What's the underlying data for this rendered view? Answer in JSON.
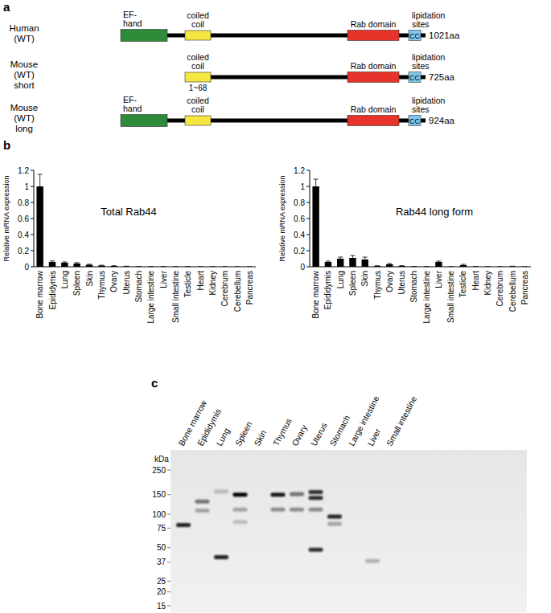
{
  "panel_a": {
    "label": "a",
    "rows": [
      {
        "name": [
          "Human",
          "(WT)"
        ],
        "length": "1021aa",
        "domains": [
          {
            "label": [
              "EF-",
              "hand"
            ],
            "color": "#2e8b3a"
          },
          {
            "label": [
              "coiled",
              "coil"
            ],
            "color": "#f5e642"
          },
          {
            "label": [
              "Rab domain"
            ],
            "color": "#e8332a"
          },
          {
            "label": [
              "lipidation",
              "sites"
            ],
            "color": "#7ec8ee",
            "text": "CC"
          }
        ]
      },
      {
        "name": [
          "Mouse",
          "(WT)",
          "short"
        ],
        "length": "725aa",
        "domains": [
          {
            "label": [
              "coiled",
              "coil"
            ],
            "color": "#f5e642",
            "note": "1~68"
          },
          {
            "label": [
              "Rab domain"
            ],
            "color": "#e8332a"
          },
          {
            "label": [
              "lipidation",
              "sites"
            ],
            "color": "#7ec8ee",
            "text": "CC"
          }
        ]
      },
      {
        "name": [
          "Mouse",
          "(WT)",
          "long"
        ],
        "length": "924aa",
        "domains": [
          {
            "label": [
              "EF-",
              "hand"
            ],
            "color": "#2e8b3a"
          },
          {
            "label": [
              "coiled",
              "coil"
            ],
            "color": "#f5e642"
          },
          {
            "label": [
              "Rab domain"
            ],
            "color": "#e8332a"
          },
          {
            "label": [
              "lipidation",
              "sites"
            ],
            "color": "#7ec8ee",
            "text": "CC"
          }
        ]
      }
    ]
  },
  "panel_b_label": "b",
  "chart_data": [
    {
      "type": "bar",
      "title": "Total Rab44",
      "y_label": "Relative mRNA expression",
      "categories": [
        "Bone marrow",
        "Epididymis",
        "Lung",
        "Spleen",
        "Skin",
        "Thymus",
        "Ovary",
        "Uterus",
        "Stomach",
        "Large intestine",
        "Liver",
        "Small intestine",
        "Testicle",
        "Heart",
        "Kidney",
        "Cerebrum",
        "Cerebellum",
        "Pancreas"
      ],
      "values": [
        1,
        0.06,
        0.05,
        0.04,
        0.025,
        0.015,
        0.01,
        0.005,
        0.003,
        0.002,
        0.002,
        0.001,
        0.002,
        0.001,
        0.001,
        0.001,
        0.0005,
        0.0005
      ],
      "errors": [
        0.15,
        0.012,
        0.01,
        0.012,
        0.006,
        0.004,
        0.003,
        0.002,
        0.001,
        0.001,
        0.001,
        0.0005,
        0.001,
        0.0005,
        0.0005,
        0.0005,
        0.0003,
        0.0003
      ],
      "color": "#000000",
      "ylim": [
        0,
        1.2
      ],
      "yticks": [
        0,
        0.2,
        0.4,
        0.6,
        0.8,
        1,
        1.2
      ],
      "grid": false
    },
    {
      "type": "bar",
      "title": "Rab44 long form",
      "y_label": "Relative mRNA expression",
      "categories": [
        "Bone marrow",
        "Epididymis",
        "Lung",
        "Spleen",
        "Skin",
        "Thymus",
        "Ovary",
        "Uterus",
        "Stomach",
        "Large intestine",
        "Liver",
        "Small intestine",
        "Testicle",
        "Heart",
        "Kidney",
        "Cerebrum",
        "Cerebellum",
        "Pancreas"
      ],
      "values": [
        1,
        0.06,
        0.1,
        0.11,
        0.09,
        0.01,
        0.03,
        0.01,
        0.003,
        0.002,
        0.06,
        0.001,
        0.02,
        0.002,
        0.001,
        0.001,
        0.005,
        0.001
      ],
      "errors": [
        0.09,
        0.01,
        0.02,
        0.03,
        0.03,
        0.003,
        0.01,
        0.004,
        0.001,
        0.001,
        0.01,
        0.0005,
        0.01,
        0.001,
        0.0005,
        0.0005,
        0.002,
        0.0005
      ],
      "color": "#000000",
      "ylim": [
        0,
        1.2
      ],
      "yticks": [
        0,
        0.2,
        0.4,
        0.6,
        0.8,
        1,
        1.2
      ],
      "grid": false
    }
  ],
  "panel_c": {
    "label": "c",
    "unit": "kDa",
    "markers": [
      250,
      150,
      100,
      75,
      50,
      37,
      25,
      20,
      15
    ],
    "lanes": [
      "Bone marrow",
      "Epididymis",
      "Lung",
      "Spleen",
      "Skin",
      "Thymus",
      "Ovary",
      "Uterus",
      "Stomach",
      "Large intestine",
      "Liver",
      "Small intestine"
    ],
    "bands": [
      {
        "lane": 0,
        "kda": 80,
        "intensity": 0.85
      },
      {
        "lane": 1,
        "kda": 130,
        "intensity": 0.5
      },
      {
        "lane": 1,
        "kda": 108,
        "intensity": 0.3
      },
      {
        "lane": 2,
        "kda": 160,
        "intensity": 0.2
      },
      {
        "lane": 2,
        "kda": 41,
        "intensity": 0.85
      },
      {
        "lane": 3,
        "kda": 150,
        "intensity": 1
      },
      {
        "lane": 3,
        "kda": 110,
        "intensity": 0.3
      },
      {
        "lane": 3,
        "kda": 85,
        "intensity": 0.2
      },
      {
        "lane": 5,
        "kda": 150,
        "intensity": 0.9
      },
      {
        "lane": 5,
        "kda": 110,
        "intensity": 0.4
      },
      {
        "lane": 6,
        "kda": 152,
        "intensity": 0.5
      },
      {
        "lane": 6,
        "kda": 110,
        "intensity": 0.4
      },
      {
        "lane": 7,
        "kda": 158,
        "intensity": 0.8
      },
      {
        "lane": 7,
        "kda": 140,
        "intensity": 0.8
      },
      {
        "lane": 7,
        "kda": 110,
        "intensity": 0.4
      },
      {
        "lane": 7,
        "kda": 48,
        "intensity": 0.8
      },
      {
        "lane": 8,
        "kda": 95,
        "intensity": 0.85
      },
      {
        "lane": 8,
        "kda": 82,
        "intensity": 0.3
      },
      {
        "lane": 10,
        "kda": 38,
        "intensity": 0.25
      }
    ]
  }
}
